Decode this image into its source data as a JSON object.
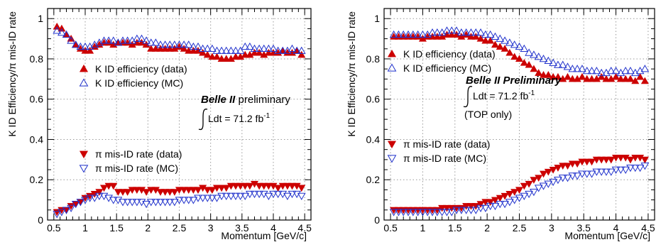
{
  "chart_data": [
    {
      "type": "scatter",
      "ylabel": "K ID Efficiency/π mis-ID rate",
      "xlabel": "Momentum [GeV/c]",
      "xlim": [
        0.4,
        4.6
      ],
      "ylim": [
        0,
        1.05
      ],
      "xticks": [
        "0.5",
        "1",
        "1.5",
        "2",
        "2.5",
        "3",
        "3.5",
        "4",
        "4.5"
      ],
      "yticks": [
        "0",
        "0.2",
        "0.4",
        "0.6",
        "0.8",
        "1"
      ],
      "grid": true,
      "legend_upper": [
        "K ID efficiency (data)",
        "K ID efficiency (MC)"
      ],
      "legend_lower": [
        "π mis-ID rate (data)",
        "π mis-ID rate (MC)"
      ],
      "annotation": {
        "title_bold": "Belle II",
        "title_rest": " preliminary",
        "lumi_prefix": "Ldt = 71.2 fb",
        "lumi_exp": "-1",
        "extra": ""
      },
      "x": [
        0.55,
        0.625,
        0.7,
        0.775,
        0.85,
        0.925,
        1.0,
        1.075,
        1.15,
        1.225,
        1.3,
        1.375,
        1.45,
        1.525,
        1.6,
        1.675,
        1.75,
        1.825,
        1.9,
        1.975,
        2.05,
        2.125,
        2.2,
        2.275,
        2.35,
        2.425,
        2.5,
        2.575,
        2.65,
        2.725,
        2.8,
        2.875,
        2.95,
        3.025,
        3.1,
        3.175,
        3.25,
        3.325,
        3.4,
        3.475,
        3.55,
        3.625,
        3.7,
        3.775,
        3.85,
        3.925,
        4.0,
        4.075,
        4.15,
        4.225,
        4.3,
        4.375,
        4.45
      ],
      "series": [
        {
          "name": "K ID efficiency (data)",
          "color": "#cc0000",
          "marker": "triangle-up",
          "filled": true,
          "values": [
            0.96,
            0.95,
            0.92,
            0.9,
            0.87,
            0.85,
            0.84,
            0.84,
            0.86,
            0.87,
            0.88,
            0.88,
            0.87,
            0.88,
            0.88,
            0.88,
            0.87,
            0.88,
            0.88,
            0.87,
            0.85,
            0.85,
            0.85,
            0.85,
            0.85,
            0.85,
            0.86,
            0.85,
            0.84,
            0.84,
            0.84,
            0.83,
            0.82,
            0.81,
            0.81,
            0.8,
            0.8,
            0.8,
            0.81,
            0.81,
            0.82,
            0.82,
            0.83,
            0.83,
            0.82,
            0.83,
            0.83,
            0.83,
            0.84,
            0.83,
            0.83,
            0.84,
            0.82
          ]
        },
        {
          "name": "K ID efficiency (MC)",
          "color": "#2233cc",
          "marker": "triangle-up",
          "filled": false,
          "values": [
            0.94,
            0.93,
            0.92,
            0.89,
            0.87,
            0.86,
            0.86,
            0.86,
            0.87,
            0.88,
            0.89,
            0.89,
            0.89,
            0.88,
            0.89,
            0.89,
            0.89,
            0.9,
            0.9,
            0.89,
            0.88,
            0.88,
            0.87,
            0.87,
            0.87,
            0.87,
            0.87,
            0.87,
            0.87,
            0.86,
            0.86,
            0.85,
            0.85,
            0.85,
            0.84,
            0.84,
            0.84,
            0.84,
            0.84,
            0.84,
            0.86,
            0.86,
            0.85,
            0.85,
            0.85,
            0.85,
            0.85,
            0.84,
            0.84,
            0.84,
            0.85,
            0.84,
            0.84
          ]
        },
        {
          "name": "π mis-ID rate (data)",
          "color": "#cc0000",
          "marker": "triangle-down",
          "filled": true,
          "values": [
            0.04,
            0.05,
            0.05,
            0.07,
            0.08,
            0.09,
            0.11,
            0.12,
            0.13,
            0.14,
            0.16,
            0.17,
            0.17,
            0.14,
            0.14,
            0.14,
            0.15,
            0.15,
            0.15,
            0.14,
            0.15,
            0.15,
            0.14,
            0.14,
            0.14,
            0.14,
            0.15,
            0.15,
            0.15,
            0.15,
            0.15,
            0.16,
            0.15,
            0.15,
            0.16,
            0.16,
            0.16,
            0.17,
            0.17,
            0.17,
            0.17,
            0.17,
            0.18,
            0.17,
            0.17,
            0.17,
            0.17,
            0.16,
            0.17,
            0.17,
            0.17,
            0.17,
            0.16
          ]
        },
        {
          "name": "π mis-ID rate (MC)",
          "color": "#2233cc",
          "marker": "triangle-down",
          "filled": false,
          "values": [
            0.03,
            0.04,
            0.05,
            0.06,
            0.08,
            0.09,
            0.1,
            0.11,
            0.11,
            0.12,
            0.12,
            0.11,
            0.1,
            0.1,
            0.09,
            0.09,
            0.09,
            0.09,
            0.09,
            0.08,
            0.09,
            0.09,
            0.09,
            0.09,
            0.09,
            0.09,
            0.1,
            0.1,
            0.1,
            0.1,
            0.11,
            0.11,
            0.11,
            0.11,
            0.11,
            0.12,
            0.12,
            0.12,
            0.12,
            0.12,
            0.12,
            0.13,
            0.13,
            0.13,
            0.13,
            0.12,
            0.13,
            0.13,
            0.13,
            0.12,
            0.13,
            0.13,
            0.12
          ]
        }
      ]
    },
    {
      "type": "scatter",
      "ylabel": "K ID Efficiency/π mis-ID rate",
      "xlabel": "Momentum [GeV/c]",
      "xlim": [
        0.4,
        4.6
      ],
      "ylim": [
        0,
        1.05
      ],
      "xticks": [
        "0.5",
        "1",
        "1.5",
        "2",
        "2.5",
        "3",
        "3.5",
        "4",
        "4.5"
      ],
      "yticks": [
        "0",
        "0.2",
        "0.4",
        "0.6",
        "0.8",
        "1"
      ],
      "grid": true,
      "legend_upper": [
        "K ID efficiency (data)",
        "K ID efficiency (MC)"
      ],
      "legend_lower": [
        "π mis-ID rate (data)",
        "π mis-ID rate (MC)"
      ],
      "annotation": {
        "title_bold": "Belle II Preliminary",
        "title_rest": "",
        "lumi_prefix": "Ldt = 71.2 fb",
        "lumi_exp": "-1",
        "extra": "(TOP only)"
      },
      "x": [
        0.55,
        0.625,
        0.7,
        0.775,
        0.85,
        0.925,
        1.0,
        1.075,
        1.15,
        1.225,
        1.3,
        1.375,
        1.45,
        1.525,
        1.6,
        1.675,
        1.75,
        1.825,
        1.9,
        1.975,
        2.05,
        2.125,
        2.2,
        2.275,
        2.35,
        2.425,
        2.5,
        2.575,
        2.65,
        2.725,
        2.8,
        2.875,
        2.95,
        3.025,
        3.1,
        3.175,
        3.25,
        3.325,
        3.4,
        3.475,
        3.55,
        3.625,
        3.7,
        3.775,
        3.85,
        3.925,
        4.0,
        4.075,
        4.15,
        4.225,
        4.3,
        4.375,
        4.45
      ],
      "series": [
        {
          "name": "K ID efficiency (data)",
          "color": "#cc0000",
          "marker": "triangle-up",
          "filled": true,
          "values": [
            0.91,
            0.91,
            0.91,
            0.91,
            0.91,
            0.91,
            0.9,
            0.91,
            0.91,
            0.91,
            0.91,
            0.92,
            0.92,
            0.92,
            0.91,
            0.92,
            0.91,
            0.91,
            0.9,
            0.89,
            0.89,
            0.87,
            0.86,
            0.85,
            0.83,
            0.81,
            0.8,
            0.78,
            0.77,
            0.75,
            0.73,
            0.72,
            0.72,
            0.71,
            0.71,
            0.7,
            0.71,
            0.7,
            0.7,
            0.71,
            0.7,
            0.7,
            0.7,
            0.71,
            0.7,
            0.7,
            0.71,
            0.7,
            0.7,
            0.7,
            0.69,
            0.71,
            0.69
          ]
        },
        {
          "name": "K ID efficiency (MC)",
          "color": "#2233cc",
          "marker": "triangle-up",
          "filled": false,
          "values": [
            0.92,
            0.92,
            0.92,
            0.92,
            0.92,
            0.92,
            0.92,
            0.92,
            0.93,
            0.93,
            0.93,
            0.94,
            0.94,
            0.94,
            0.93,
            0.93,
            0.93,
            0.93,
            0.93,
            0.92,
            0.92,
            0.91,
            0.9,
            0.89,
            0.88,
            0.87,
            0.86,
            0.85,
            0.83,
            0.82,
            0.81,
            0.8,
            0.79,
            0.78,
            0.77,
            0.77,
            0.76,
            0.75,
            0.75,
            0.75,
            0.74,
            0.74,
            0.74,
            0.73,
            0.73,
            0.74,
            0.74,
            0.73,
            0.74,
            0.74,
            0.73,
            0.74,
            0.75
          ]
        },
        {
          "name": "π mis-ID rate (data)",
          "color": "#cc0000",
          "marker": "triangle-down",
          "filled": true,
          "values": [
            0.05,
            0.05,
            0.05,
            0.05,
            0.05,
            0.05,
            0.05,
            0.05,
            0.05,
            0.05,
            0.06,
            0.06,
            0.06,
            0.06,
            0.06,
            0.07,
            0.07,
            0.07,
            0.08,
            0.09,
            0.09,
            0.1,
            0.11,
            0.12,
            0.13,
            0.14,
            0.15,
            0.17,
            0.18,
            0.2,
            0.21,
            0.23,
            0.24,
            0.25,
            0.26,
            0.27,
            0.27,
            0.28,
            0.28,
            0.29,
            0.29,
            0.29,
            0.3,
            0.3,
            0.3,
            0.3,
            0.31,
            0.31,
            0.31,
            0.3,
            0.31,
            0.31,
            0.3
          ]
        },
        {
          "name": "π mis-ID rate (MC)",
          "color": "#2233cc",
          "marker": "triangle-down",
          "filled": false,
          "values": [
            0.04,
            0.04,
            0.04,
            0.04,
            0.04,
            0.04,
            0.04,
            0.04,
            0.04,
            0.04,
            0.04,
            0.04,
            0.04,
            0.05,
            0.05,
            0.05,
            0.05,
            0.05,
            0.06,
            0.06,
            0.07,
            0.07,
            0.08,
            0.08,
            0.09,
            0.1,
            0.11,
            0.12,
            0.13,
            0.14,
            0.16,
            0.17,
            0.18,
            0.19,
            0.2,
            0.21,
            0.21,
            0.22,
            0.22,
            0.23,
            0.23,
            0.23,
            0.24,
            0.24,
            0.24,
            0.24,
            0.25,
            0.25,
            0.25,
            0.26,
            0.26,
            0.26,
            0.27
          ]
        }
      ]
    }
  ]
}
